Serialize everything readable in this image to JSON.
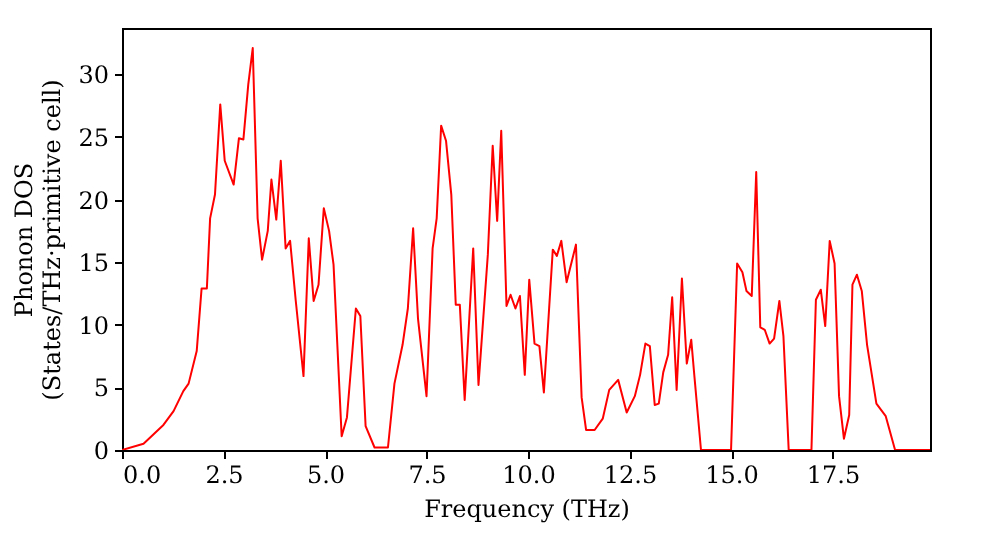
{
  "chart_data": {
    "type": "line",
    "xlabel": "Frequency (THz)",
    "ylabel": "Phonon DOS\n(States/THz·primitive cell)",
    "xlim": [
      0,
      19.9
    ],
    "ylim": [
      0,
      33.7
    ],
    "xticks": [
      {
        "value": 0,
        "label": "0.0"
      },
      {
        "value": 2.5,
        "label": "2.5"
      },
      {
        "value": 5,
        "label": "5.0"
      },
      {
        "value": 7.5,
        "label": "7.5"
      },
      {
        "value": 10,
        "label": "10.0"
      },
      {
        "value": 12.5,
        "label": "12.5"
      },
      {
        "value": 15,
        "label": "15.0"
      },
      {
        "value": 17.5,
        "label": "17.5"
      }
    ],
    "yticks": [
      0,
      5,
      10,
      15,
      20,
      25,
      30
    ],
    "grid": false,
    "marker": "none",
    "line_style": "solid",
    "x": [
      0,
      0.53,
      1.02,
      1.27,
      1.51,
      1.64,
      1.84,
      1.96,
      2.09,
      2.17,
      2.29,
      2.42,
      2.53,
      2.75,
      2.88,
      2.99,
      3.11,
      3.22,
      3.34,
      3.45,
      3.59,
      3.68,
      3.8,
      3.91,
      4.03,
      4.14,
      4.28,
      4.47,
      4.6,
      4.72,
      4.84,
      4.97,
      5.1,
      5.21,
      5.41,
      5.54,
      5.76,
      5.87,
      6.0,
      6.22,
      6.55,
      6.71,
      6.91,
      7.04,
      7.17,
      7.29,
      7.5,
      7.65,
      7.75,
      7.86,
      7.98,
      8.11,
      8.22,
      8.32,
      8.44,
      8.65,
      8.78,
      9.01,
      9.13,
      9.24,
      9.34,
      9.47,
      9.57,
      9.69,
      9.8,
      9.92,
      10.03,
      10.16,
      10.28,
      10.39,
      10.61,
      10.71,
      10.82,
      10.95,
      11.18,
      11.32,
      11.43,
      11.64,
      11.84,
      12.0,
      12.22,
      12.43,
      12.63,
      12.76,
      12.89,
      13.0,
      13.12,
      13.22,
      13.33,
      13.45,
      13.55,
      13.66,
      13.79,
      13.91,
      14.02,
      14.1,
      14.26,
      15.0,
      15.15,
      15.28,
      15.38,
      15.51,
      15.62,
      15.72,
      15.83,
      15.95,
      16.06,
      16.19,
      16.29,
      16.42,
      16.98,
      17.09,
      17.21,
      17.32,
      17.43,
      17.55,
      17.66,
      17.78,
      17.91,
      17.99,
      18.1,
      18.22,
      18.35,
      18.58,
      18.81,
      19.04,
      19.9
    ],
    "series": [
      {
        "color": "#ff0000",
        "values": [
          0,
          0.5,
          2,
          3.1,
          4.7,
          5.3,
          7.9,
          12.9,
          12.9,
          18.5,
          20.4,
          27.6,
          23.1,
          21.2,
          24.9,
          24.8,
          29.2,
          32.1,
          18.5,
          15.2,
          17.5,
          21.6,
          18.4,
          23.1,
          16.1,
          16.7,
          11.9,
          5.9,
          16.9,
          11.9,
          13.2,
          19.3,
          17.5,
          14.8,
          1.1,
          2.6,
          11.3,
          10.7,
          1.9,
          0.2,
          0.2,
          5.3,
          8.4,
          11.3,
          17.7,
          10.5,
          4.3,
          16.1,
          18.5,
          25.9,
          24.7,
          20.4,
          11.6,
          11.6,
          4.0,
          16.1,
          5.2,
          15.6,
          24.3,
          18.3,
          25.5,
          11.5,
          12.4,
          11.3,
          12.3,
          6.0,
          13.6,
          8.5,
          8.3,
          4.6,
          16.0,
          15.5,
          16.7,
          13.4,
          16.4,
          4.2,
          1.6,
          1.6,
          2.5,
          4.8,
          5.6,
          3.0,
          4.3,
          6.0,
          8.5,
          8.3,
          3.6,
          3.7,
          6.2,
          7.6,
          12.2,
          4.8,
          13.7,
          6.9,
          8.8,
          5.8,
          0,
          0,
          14.9,
          14.2,
          12.7,
          12.3,
          22.2,
          9.8,
          9.6,
          8.5,
          8.9,
          11.9,
          9.1,
          0,
          0,
          12.0,
          12.8,
          9.9,
          16.7,
          14.9,
          4.3,
          0.9,
          2.8,
          13.2,
          14.0,
          12.7,
          8.4,
          3.7,
          2.7,
          0,
          0
        ]
      }
    ]
  }
}
